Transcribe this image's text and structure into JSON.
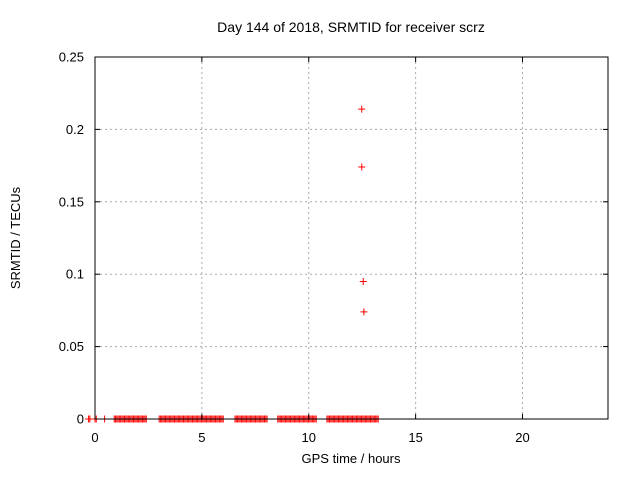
{
  "window": {
    "background": "#ffffff"
  },
  "chart_data": {
    "type": "scatter",
    "title": "Day 144 of 2018, SRMTID for receiver scrz",
    "xlabel": "GPS time / hours",
    "ylabel": "SRMTID / TECUs",
    "xlim": [
      0,
      24
    ],
    "ylim": [
      0,
      0.25
    ],
    "xticks": [
      0,
      5,
      10,
      15,
      20
    ],
    "xtick_labels": [
      "0",
      "5",
      "10",
      "15",
      "20"
    ],
    "yticks": [
      0,
      0.05,
      0.1,
      0.15,
      0.2,
      0.25
    ],
    "ytick_labels": [
      "0",
      "0.05",
      "0.1",
      "0.15",
      "0.2",
      "0.25"
    ],
    "grid": true,
    "legend": "none",
    "marker": "plus",
    "colors": {
      "marker": "#ff0000",
      "grid": "#aaaaaa",
      "axis": "#000000",
      "text": "#000000",
      "background": "#ffffff"
    },
    "series": [
      {
        "name": "SRMTID",
        "baseline_y": 0,
        "baseline_segments": [
          [
            -0.3,
            -0.24
          ],
          [
            0.0,
            0.1
          ],
          [
            0.45,
            0.5
          ],
          [
            0.9,
            2.45
          ],
          [
            3.0,
            6.0
          ],
          [
            6.55,
            8.05
          ],
          [
            8.55,
            10.4
          ],
          [
            10.85,
            13.25
          ]
        ],
        "point_step_hours": 0.06,
        "outliers": [
          [
            12.48,
            0.214
          ],
          [
            12.48,
            0.174
          ],
          [
            12.55,
            0.095
          ],
          [
            12.58,
            0.074
          ]
        ]
      }
    ]
  }
}
